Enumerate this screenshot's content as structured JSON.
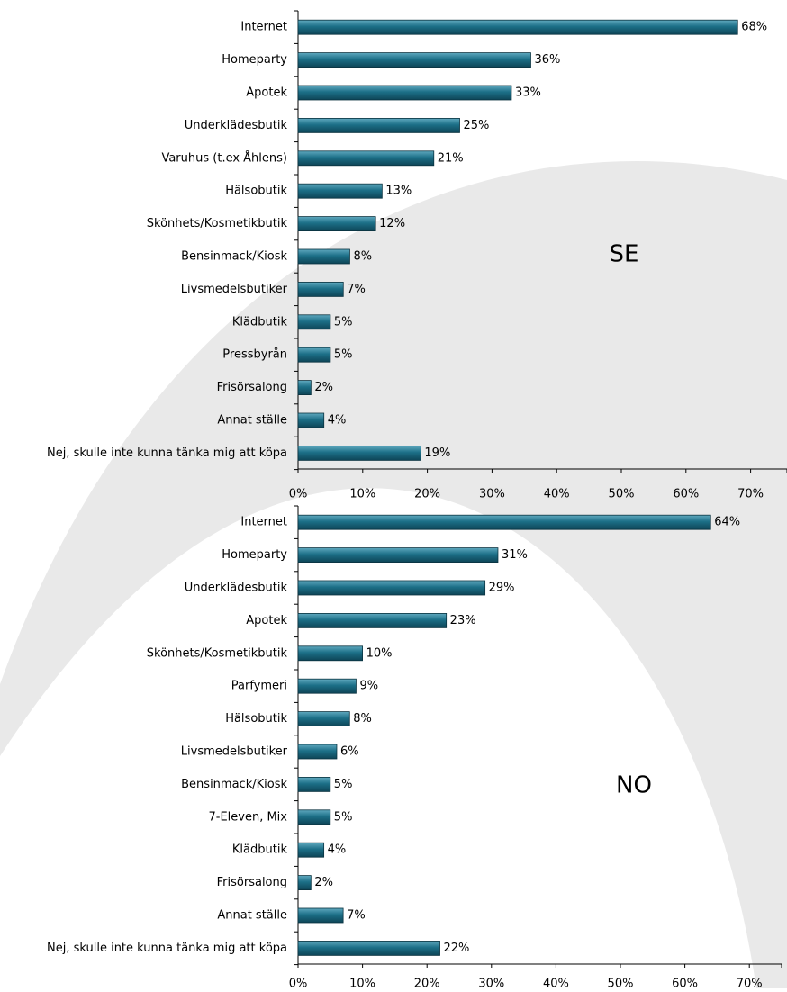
{
  "chart_data": [
    {
      "type": "bar",
      "orientation": "horizontal",
      "title": "",
      "annotation": "SE",
      "categories": [
        "Internet",
        "Homeparty",
        "Apotek",
        "Underklädesbutik",
        "Varuhus (t.ex Åhlens)",
        "Hälsobutik",
        "Skönhets/Kosmetikbutik",
        "Bensinmack/Kiosk",
        "Livsmedelsbutiker",
        "Klädbutik",
        "Pressbyrån",
        "Frisörsalong",
        "Annat ställe",
        "Nej, skulle inte kunna tänka mig att köpa"
      ],
      "values": [
        68,
        36,
        33,
        25,
        21,
        13,
        12,
        8,
        7,
        5,
        5,
        2,
        4,
        19
      ],
      "data_labels": [
        "68%",
        "36%",
        "33%",
        "25%",
        "21%",
        "13%",
        "12%",
        "8%",
        "7%",
        "5%",
        "5%",
        "2%",
        "4%",
        "19%"
      ],
      "xlim": [
        0,
        75
      ],
      "x_ticks": [
        "0%",
        "10%",
        "20%",
        "30%",
        "40%",
        "50%",
        "60%",
        "70%"
      ],
      "x_tick_values": [
        0,
        10,
        20,
        30,
        40,
        50,
        60,
        70
      ],
      "bar_color": "#1c6f87",
      "grid": false
    },
    {
      "type": "bar",
      "orientation": "horizontal",
      "title": "",
      "annotation": "NO",
      "categories": [
        "Internet",
        "Homeparty",
        "Underklädesbutik",
        "Apotek",
        "Skönhets/Kosmetikbutik",
        "Parfymeri",
        "Hälsobutik",
        "Livsmedelsbutiker",
        "Bensinmack/Kiosk",
        "7-Eleven, Mix",
        "Klädbutik",
        "Frisörsalong",
        "Annat ställe",
        "Nej, skulle inte kunna tänka mig att köpa"
      ],
      "values": [
        64,
        31,
        29,
        23,
        10,
        9,
        8,
        6,
        5,
        5,
        4,
        2,
        7,
        22
      ],
      "data_labels": [
        "64%",
        "31%",
        "29%",
        "23%",
        "10%",
        "9%",
        "8%",
        "6%",
        "5%",
        "5%",
        "4%",
        "2%",
        "7%",
        "22%"
      ],
      "xlim": [
        0,
        75
      ],
      "x_ticks": [
        "0%",
        "10%",
        "20%",
        "30%",
        "40%",
        "50%",
        "60%",
        "70%"
      ],
      "x_tick_values": [
        0,
        10,
        20,
        30,
        40,
        50,
        60,
        70
      ],
      "bar_color": "#1c6f87",
      "grid": false
    }
  ],
  "colors": {
    "bar": "#1c6f87",
    "bar_light": "#5fa8be",
    "bar_dark": "#0e4557",
    "background_arc": "#e9e9e9",
    "axis": "#000000",
    "text": "#000000"
  }
}
